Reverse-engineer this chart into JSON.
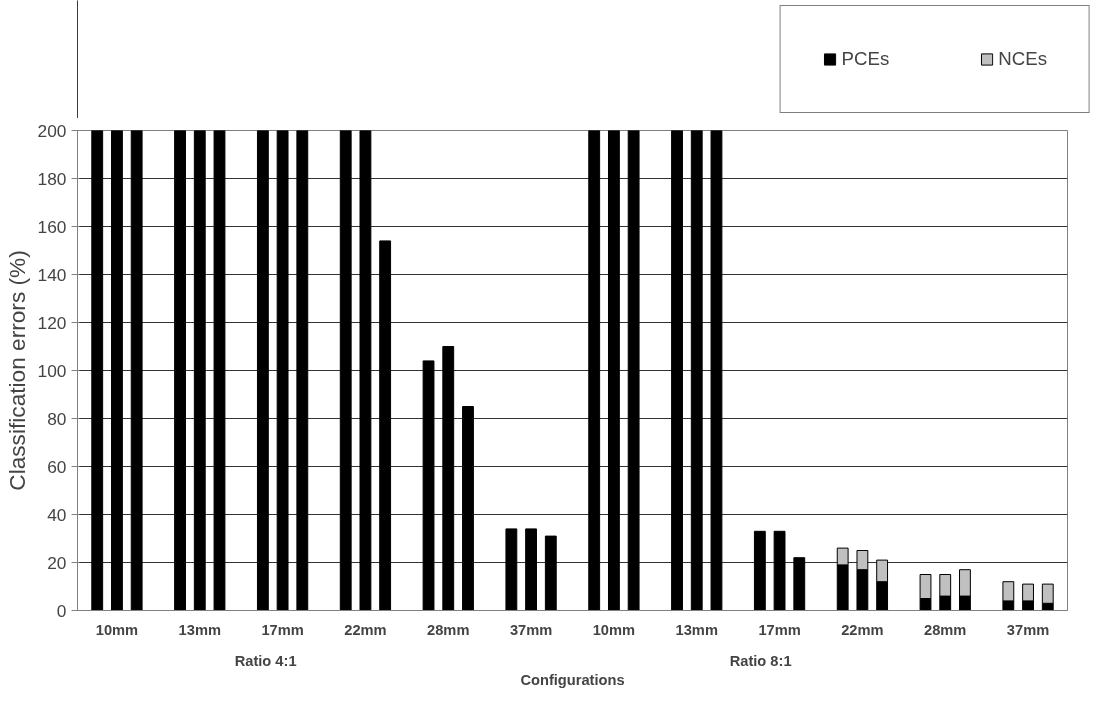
{
  "chart_data": {
    "type": "bar",
    "stacked": true,
    "xlabel": "Configurations",
    "ylabel": "Classification errors (%)",
    "categories": [
      null,
      "10mm",
      null,
      null,
      "13mm",
      null,
      null,
      "17mm",
      null,
      null,
      "22mm",
      null,
      null,
      "28mm",
      null,
      null,
      "37mm",
      null,
      null,
      "10mm",
      null,
      null,
      "13mm",
      null,
      null,
      "17mm",
      null,
      null,
      "22mm",
      null,
      null,
      "28mm",
      null,
      null,
      "37mm",
      null
    ],
    "series": [
      {
        "name": "PCEs",
        "color": "#000000",
        "values": [
          200,
          200,
          200,
          200,
          200,
          200,
          200,
          200,
          200,
          200,
          200,
          154,
          104,
          110,
          85,
          34,
          34,
          31,
          200,
          200,
          200,
          200,
          200,
          200,
          33,
          33,
          22,
          19,
          17,
          12,
          5,
          6,
          6,
          4,
          4,
          3
        ]
      },
      {
        "name": "NCEs",
        "color": "#c0c0c0",
        "values": [
          null,
          null,
          null,
          null,
          null,
          null,
          null,
          null,
          null,
          null,
          null,
          null,
          null,
          null,
          null,
          null,
          null,
          null,
          null,
          null,
          null,
          null,
          null,
          null,
          null,
          null,
          null,
          7,
          8,
          9,
          10,
          9,
          11,
          8,
          7,
          8
        ]
      }
    ],
    "annotations": [
      "Ratio 4:1",
      "Ratio 8:1"
    ],
    "ylim": [
      0,
      200
    ],
    "yticks": [
      0,
      20,
      40,
      60,
      80,
      100,
      120,
      140,
      160,
      180,
      200
    ],
    "grid": "y",
    "legend": "top right"
  }
}
